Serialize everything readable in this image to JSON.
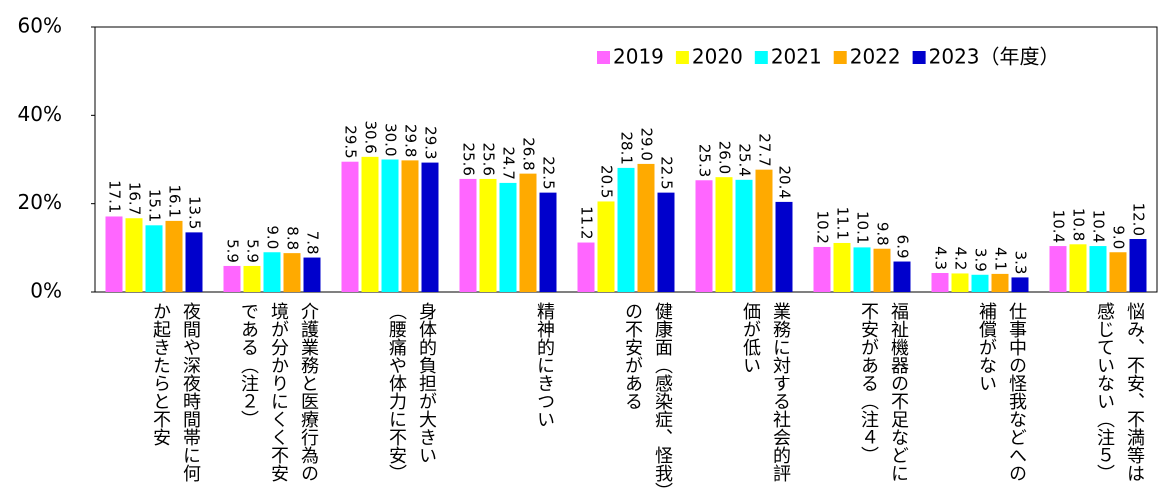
{
  "chart_data": {
    "type": "bar",
    "categories": [
      "夜間や深夜時間帯に何か起きたらと不安",
      "介護業務と医療行為の境が分かりにくく不安である（注２）",
      "身体的負担が大きい（腰痛や体力に不安）",
      "精神的にきつい",
      "健康面（感染症、怪我）の不安がある",
      "業務に対する社会的評価が低い",
      "福祉機器の不足などに不安がある（注４）",
      "仕事中の怪我などへの補償がない",
      "悩み、不安、不満等は感じていない（注５）"
    ],
    "series": [
      {
        "name": "2019",
        "color": "#ff66ff",
        "values": [
          17.1,
          5.9,
          29.5,
          25.6,
          11.2,
          25.3,
          10.2,
          4.3,
          10.4
        ],
        "value_labels": [
          "17.1",
          "5.9",
          "29.5",
          "25.6",
          "11.2",
          "25.3",
          "10.2",
          "4.3",
          "10.4"
        ]
      },
      {
        "name": "2020",
        "color": "#ffff00",
        "values": [
          16.7,
          5.9,
          30.6,
          25.6,
          20.5,
          26.0,
          11.1,
          4.2,
          10.8
        ],
        "value_labels": [
          "16.7",
          "5.9",
          "30.6",
          "25.6",
          "20.5",
          "26.0",
          "11.1",
          "4.2",
          "10.8"
        ]
      },
      {
        "name": "2021",
        "color": "#00ffff",
        "values": [
          15.1,
          9.0,
          30.0,
          24.7,
          28.1,
          25.4,
          10.1,
          3.9,
          10.4
        ],
        "value_labels": [
          "15.1",
          "9.0",
          "30.0",
          "24.7",
          "28.1",
          "25.4",
          "10.1",
          "3.9",
          "10.4"
        ]
      },
      {
        "name": "2022",
        "color": "#ffaa00",
        "values": [
          16.1,
          8.8,
          29.8,
          26.8,
          29.0,
          27.7,
          9.8,
          4.1,
          9.0
        ],
        "value_labels": [
          "16.1",
          "8.8",
          "29.8",
          "26.8",
          "29.0",
          "27.7",
          "9.8",
          "4.1",
          "9.0"
        ]
      },
      {
        "name": "2023（年度）",
        "color": "#0000cc",
        "values": [
          13.5,
          7.8,
          29.3,
          22.5,
          22.5,
          20.4,
          6.9,
          3.3,
          12.0
        ],
        "value_labels": [
          "13.5",
          "7.8",
          "29.3",
          "22.5",
          "22.5",
          "20.4",
          "6.9",
          "3.3",
          "12.0"
        ]
      }
    ],
    "ylim": [
      0,
      60
    ],
    "yticks": [
      {
        "value": 0,
        "label": "0%"
      },
      {
        "value": 20,
        "label": "20%"
      },
      {
        "value": 40,
        "label": "40%"
      },
      {
        "value": 60,
        "label": "60%"
      }
    ],
    "legend": "top-right"
  }
}
